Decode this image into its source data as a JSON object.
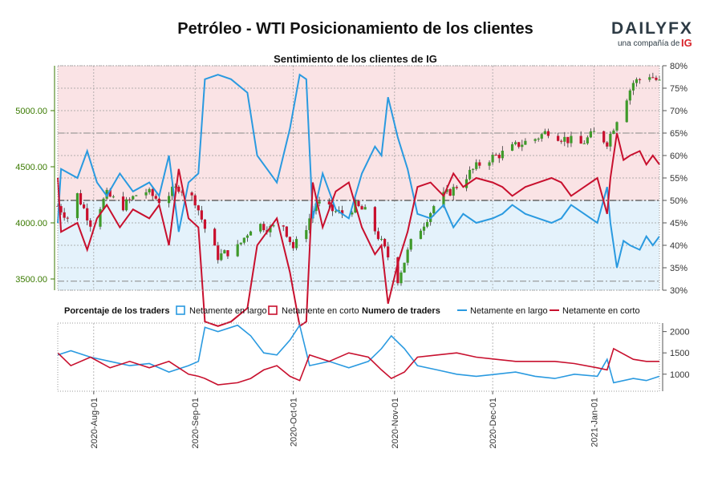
{
  "title": "Petróleo - WTI Posicionamiento de los clientes",
  "logo": {
    "brand": "DAILYFX",
    "tagline": "una compañía de",
    "ig": "IG"
  },
  "colors": {
    "long": "#2a9ae0",
    "short": "#c8102e",
    "long_fill": "#e4f2fb",
    "short_fill": "#fae3e5",
    "candle_up": "#3f9a2a",
    "candle_down": "#c8102e",
    "left_axis": "#3a7a00"
  },
  "chart_data": {
    "type": "line",
    "title": "Sentimiento de los clientes de IG",
    "x_start": "2020-07-21",
    "x_end": "2021-01-21",
    "x_ticks": [
      "2020-Aug-01",
      "2020-Sep-01",
      "2020-Oct-01",
      "2020-Nov-01",
      "2020-Dec-01",
      "2021-Jan-01"
    ],
    "price_axis": {
      "ticks": [
        "3500.00",
        "4000.00",
        "4500.00",
        "5000.00"
      ],
      "range": [
        3400,
        5400
      ]
    },
    "sentiment_axis": {
      "ticks": [
        "30%",
        "35%",
        "40%",
        "45%",
        "50%",
        "55%",
        "60%",
        "65%",
        "70%",
        "75%",
        "80%"
      ],
      "range": [
        30,
        80
      ],
      "reference_lines": [
        50,
        32,
        65
      ]
    },
    "traders_axis": {
      "ticks": [
        "1000",
        "1500",
        "2000"
      ],
      "range": [
        600,
        2200
      ]
    },
    "price_anchors": [
      [
        "2020-07-21",
        4150
      ],
      [
        "2020-07-24",
        4050
      ],
      [
        "2020-07-27",
        4250
      ],
      [
        "2020-07-31",
        4000
      ],
      [
        "2020-08-05",
        4250
      ],
      [
        "2020-08-10",
        4150
      ],
      [
        "2020-08-16",
        4300
      ],
      [
        "2020-08-21",
        4200
      ],
      [
        "2020-08-27",
        4320
      ],
      [
        "2020-09-01",
        4200
      ],
      [
        "2020-09-04",
        3950
      ],
      [
        "2020-09-08",
        3700
      ],
      [
        "2020-09-14",
        3780
      ],
      [
        "2020-09-19",
        4000
      ],
      [
        "2020-09-24",
        3950
      ],
      [
        "2020-09-28",
        3980
      ],
      [
        "2020-10-01",
        3780
      ],
      [
        "2020-10-04",
        3900
      ],
      [
        "2020-10-08",
        4180
      ],
      [
        "2020-10-12",
        4120
      ],
      [
        "2020-10-16",
        4080
      ],
      [
        "2020-10-20",
        4150
      ],
      [
        "2020-10-23",
        4100
      ],
      [
        "2020-10-27",
        3880
      ],
      [
        "2020-10-30",
        3700
      ],
      [
        "2020-11-02",
        3500
      ],
      [
        "2020-11-06",
        3820
      ],
      [
        "2020-11-10",
        4000
      ],
      [
        "2020-11-14",
        4200
      ],
      [
        "2020-11-19",
        4300
      ],
      [
        "2020-11-23",
        4420
      ],
      [
        "2020-11-28",
        4550
      ],
      [
        "2020-12-04",
        4620
      ],
      [
        "2020-12-09",
        4700
      ],
      [
        "2020-12-14",
        4750
      ],
      [
        "2020-12-18",
        4820
      ],
      [
        "2020-12-22",
        4760
      ],
      [
        "2020-12-28",
        4700
      ],
      [
        "2021-01-01",
        4800
      ],
      [
        "2021-01-05",
        4720
      ],
      [
        "2021-01-09",
        5000
      ],
      [
        "2021-01-13",
        5250
      ],
      [
        "2021-01-18",
        5320
      ],
      [
        "2021-01-21",
        5250
      ]
    ],
    "series": [
      {
        "name": "Netamente en largo",
        "unit": "%",
        "anchors": [
          [
            "2020-07-21",
            45
          ],
          [
            "2020-07-22",
            57
          ],
          [
            "2020-07-27",
            55
          ],
          [
            "2020-07-30",
            61
          ],
          [
            "2020-08-02",
            54
          ],
          [
            "2020-08-05",
            51
          ],
          [
            "2020-08-09",
            56
          ],
          [
            "2020-08-13",
            52
          ],
          [
            "2020-08-18",
            54
          ],
          [
            "2020-08-21",
            51
          ],
          [
            "2020-08-24",
            60
          ],
          [
            "2020-08-27",
            43
          ],
          [
            "2020-08-30",
            54
          ],
          [
            "2020-09-02",
            56
          ],
          [
            "2020-09-04",
            77
          ],
          [
            "2020-09-08",
            78
          ],
          [
            "2020-09-12",
            77
          ],
          [
            "2020-09-17",
            74
          ],
          [
            "2020-09-20",
            60
          ],
          [
            "2020-09-23",
            57
          ],
          [
            "2020-09-26",
            54
          ],
          [
            "2020-09-30",
            66
          ],
          [
            "2020-10-03",
            78
          ],
          [
            "2020-10-05",
            77
          ],
          [
            "2020-10-07",
            46
          ],
          [
            "2020-10-10",
            56
          ],
          [
            "2020-10-14",
            48
          ],
          [
            "2020-10-18",
            46
          ],
          [
            "2020-10-22",
            56
          ],
          [
            "2020-10-26",
            62
          ],
          [
            "2020-10-28",
            60
          ],
          [
            "2020-10-30",
            73
          ],
          [
            "2020-11-02",
            64
          ],
          [
            "2020-11-05",
            57
          ],
          [
            "2020-11-08",
            47
          ],
          [
            "2020-11-12",
            46
          ],
          [
            "2020-11-16",
            49
          ],
          [
            "2020-11-19",
            44
          ],
          [
            "2020-11-22",
            47
          ],
          [
            "2020-11-26",
            45
          ],
          [
            "2020-12-01",
            46
          ],
          [
            "2020-12-04",
            47
          ],
          [
            "2020-12-07",
            49
          ],
          [
            "2020-12-11",
            47
          ],
          [
            "2020-12-15",
            46
          ],
          [
            "2020-12-19",
            45
          ],
          [
            "2020-12-22",
            46
          ],
          [
            "2020-12-25",
            49
          ],
          [
            "2020-12-29",
            47
          ],
          [
            "2021-01-02",
            45
          ],
          [
            "2021-01-05",
            53
          ],
          [
            "2021-01-06",
            45
          ],
          [
            "2021-01-08",
            35
          ],
          [
            "2021-01-10",
            41
          ],
          [
            "2021-01-12",
            40
          ],
          [
            "2021-01-15",
            39
          ],
          [
            "2021-01-17",
            42
          ],
          [
            "2021-01-19",
            40
          ],
          [
            "2021-01-21",
            42
          ]
        ]
      },
      {
        "name": "Netamente en corto",
        "unit": "%",
        "anchors": [
          [
            "2020-07-21",
            55
          ],
          [
            "2020-07-22",
            43
          ],
          [
            "2020-07-27",
            45
          ],
          [
            "2020-07-30",
            39
          ],
          [
            "2020-08-02",
            46
          ],
          [
            "2020-08-05",
            49
          ],
          [
            "2020-08-09",
            44
          ],
          [
            "2020-08-13",
            48
          ],
          [
            "2020-08-18",
            46
          ],
          [
            "2020-08-21",
            49
          ],
          [
            "2020-08-24",
            40
          ],
          [
            "2020-08-27",
            57
          ],
          [
            "2020-08-30",
            46
          ],
          [
            "2020-09-02",
            44
          ],
          [
            "2020-09-04",
            23
          ],
          [
            "2020-09-08",
            22
          ],
          [
            "2020-09-12",
            23
          ],
          [
            "2020-09-17",
            26
          ],
          [
            "2020-09-20",
            40
          ],
          [
            "2020-09-23",
            43
          ],
          [
            "2020-09-26",
            46
          ],
          [
            "2020-09-30",
            34
          ],
          [
            "2020-10-03",
            22
          ],
          [
            "2020-10-05",
            23
          ],
          [
            "2020-10-07",
            54
          ],
          [
            "2020-10-10",
            44
          ],
          [
            "2020-10-14",
            52
          ],
          [
            "2020-10-18",
            54
          ],
          [
            "2020-10-22",
            44
          ],
          [
            "2020-10-26",
            38
          ],
          [
            "2020-10-28",
            40
          ],
          [
            "2020-10-30",
            27
          ],
          [
            "2020-11-02",
            36
          ],
          [
            "2020-11-05",
            43
          ],
          [
            "2020-11-08",
            53
          ],
          [
            "2020-11-12",
            54
          ],
          [
            "2020-11-16",
            51
          ],
          [
            "2020-11-19",
            56
          ],
          [
            "2020-11-22",
            53
          ],
          [
            "2020-11-26",
            55
          ],
          [
            "2020-12-01",
            54
          ],
          [
            "2020-12-04",
            53
          ],
          [
            "2020-12-07",
            51
          ],
          [
            "2020-12-11",
            53
          ],
          [
            "2020-12-15",
            54
          ],
          [
            "2020-12-19",
            55
          ],
          [
            "2020-12-22",
            54
          ],
          [
            "2020-12-25",
            51
          ],
          [
            "2020-12-29",
            53
          ],
          [
            "2021-01-02",
            55
          ],
          [
            "2021-01-05",
            47
          ],
          [
            "2021-01-06",
            55
          ],
          [
            "2021-01-08",
            65
          ],
          [
            "2021-01-10",
            59
          ],
          [
            "2021-01-12",
            60
          ],
          [
            "2021-01-15",
            61
          ],
          [
            "2021-01-17",
            58
          ],
          [
            "2021-01-19",
            60
          ],
          [
            "2021-01-21",
            58
          ]
        ]
      }
    ],
    "trader_counts": {
      "long_anchors": [
        [
          "2020-07-21",
          1450
        ],
        [
          "2020-07-25",
          1550
        ],
        [
          "2020-07-31",
          1400
        ],
        [
          "2020-08-06",
          1300
        ],
        [
          "2020-08-12",
          1200
        ],
        [
          "2020-08-18",
          1250
        ],
        [
          "2020-08-24",
          1050
        ],
        [
          "2020-08-30",
          1200
        ],
        [
          "2020-09-02",
          1300
        ],
        [
          "2020-09-04",
          2100
        ],
        [
          "2020-09-08",
          2000
        ],
        [
          "2020-09-14",
          2150
        ],
        [
          "2020-09-18",
          1900
        ],
        [
          "2020-09-22",
          1500
        ],
        [
          "2020-09-26",
          1450
        ],
        [
          "2020-09-30",
          1800
        ],
        [
          "2020-10-03",
          2150
        ],
        [
          "2020-10-06",
          1200
        ],
        [
          "2020-10-12",
          1300
        ],
        [
          "2020-10-18",
          1150
        ],
        [
          "2020-10-24",
          1300
        ],
        [
          "2020-10-28",
          1600
        ],
        [
          "2020-10-31",
          1900
        ],
        [
          "2020-11-04",
          1600
        ],
        [
          "2020-11-08",
          1200
        ],
        [
          "2020-11-14",
          1100
        ],
        [
          "2020-11-20",
          1000
        ],
        [
          "2020-11-26",
          950
        ],
        [
          "2020-12-02",
          1000
        ],
        [
          "2020-12-08",
          1050
        ],
        [
          "2020-12-14",
          950
        ],
        [
          "2020-12-20",
          900
        ],
        [
          "2020-12-26",
          1000
        ],
        [
          "2021-01-02",
          950
        ],
        [
          "2021-01-05",
          1350
        ],
        [
          "2021-01-07",
          800
        ],
        [
          "2021-01-13",
          900
        ],
        [
          "2021-01-17",
          850
        ],
        [
          "2021-01-21",
          950
        ]
      ],
      "short_anchors": [
        [
          "2020-07-21",
          1500
        ],
        [
          "2020-07-25",
          1200
        ],
        [
          "2020-07-31",
          1400
        ],
        [
          "2020-08-06",
          1150
        ],
        [
          "2020-08-12",
          1300
        ],
        [
          "2020-08-18",
          1150
        ],
        [
          "2020-08-24",
          1300
        ],
        [
          "2020-08-30",
          1000
        ],
        [
          "2020-09-02",
          950
        ],
        [
          "2020-09-04",
          900
        ],
        [
          "2020-09-08",
          750
        ],
        [
          "2020-09-14",
          800
        ],
        [
          "2020-09-18",
          900
        ],
        [
          "2020-09-22",
          1100
        ],
        [
          "2020-09-26",
          1200
        ],
        [
          "2020-09-30",
          950
        ],
        [
          "2020-10-03",
          850
        ],
        [
          "2020-10-06",
          1450
        ],
        [
          "2020-10-12",
          1300
        ],
        [
          "2020-10-18",
          1500
        ],
        [
          "2020-10-24",
          1400
        ],
        [
          "2020-10-28",
          1100
        ],
        [
          "2020-10-31",
          900
        ],
        [
          "2020-11-04",
          1050
        ],
        [
          "2020-11-08",
          1400
        ],
        [
          "2020-11-14",
          1450
        ],
        [
          "2020-11-20",
          1500
        ],
        [
          "2020-11-26",
          1400
        ],
        [
          "2020-12-02",
          1350
        ],
        [
          "2020-12-08",
          1300
        ],
        [
          "2020-12-14",
          1300
        ],
        [
          "2020-12-20",
          1300
        ],
        [
          "2020-12-26",
          1250
        ],
        [
          "2021-01-02",
          1150
        ],
        [
          "2021-01-05",
          1100
        ],
        [
          "2021-01-07",
          1600
        ],
        [
          "2021-01-13",
          1350
        ],
        [
          "2021-01-17",
          1300
        ],
        [
          "2021-01-21",
          1300
        ]
      ]
    }
  },
  "legend": {
    "percent_heading": "Porcentaje de los traders",
    "long_label": "Netamente en largo",
    "short_label": "Netamente en corto",
    "count_heading": "Numero de traders",
    "long_label_2": "Netamente en largo",
    "short_label_2": "Netamente en corto"
  }
}
